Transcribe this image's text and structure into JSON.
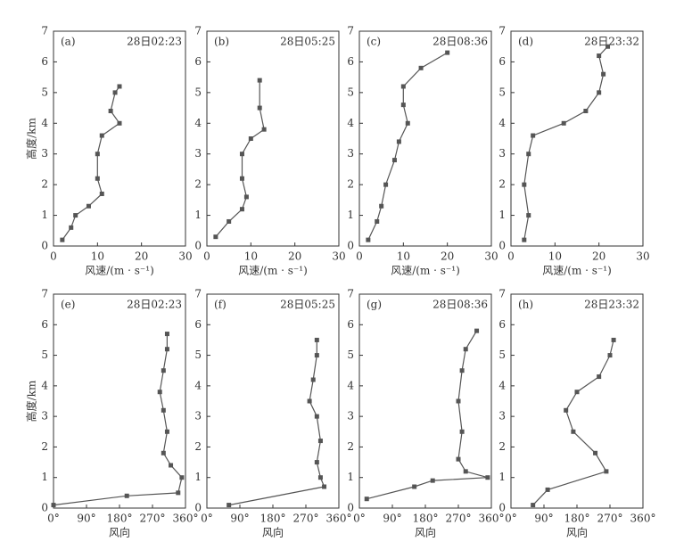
{
  "chart_data": [
    {
      "type": "line",
      "panel": "(a)",
      "time": "28日02:23",
      "xlabel": "风速/(m · s⁻¹)",
      "ylabel": "高度/km",
      "xlim": [
        0,
        30
      ],
      "ylim": [
        0,
        7
      ],
      "xticks": [
        0,
        10,
        20,
        30
      ],
      "yticks": [
        0,
        1,
        2,
        3,
        4,
        5,
        6,
        7
      ],
      "color": "#555555",
      "x": [
        2,
        4,
        5,
        8,
        11,
        10,
        10,
        11,
        15,
        13,
        14,
        15
      ],
      "values": [
        0.2,
        0.6,
        1.0,
        1.3,
        1.7,
        2.2,
        3.0,
        3.6,
        4.0,
        4.4,
        5.0,
        5.2
      ]
    },
    {
      "type": "line",
      "panel": "(b)",
      "time": "28日05:25",
      "xlabel": "风速/(m · s⁻¹)",
      "xlim": [
        0,
        30
      ],
      "ylim": [
        0,
        7
      ],
      "xticks": [
        0,
        10,
        20,
        30
      ],
      "yticks": [
        0,
        1,
        2,
        3,
        4,
        5,
        6,
        7
      ],
      "color": "#555555",
      "x": [
        2,
        5,
        8,
        9,
        8,
        8,
        10,
        13,
        12,
        12
      ],
      "values": [
        0.3,
        0.8,
        1.2,
        1.6,
        2.2,
        3.0,
        3.5,
        3.8,
        4.5,
        5.4
      ]
    },
    {
      "type": "line",
      "panel": "(c)",
      "time": "28日08:36",
      "xlabel": "风速/(m · s⁻¹)",
      "xlim": [
        0,
        30
      ],
      "ylim": [
        0,
        7
      ],
      "xticks": [
        0,
        10,
        20,
        30
      ],
      "yticks": [
        0,
        1,
        2,
        3,
        4,
        5,
        6,
        7
      ],
      "color": "#555555",
      "x": [
        2,
        4,
        5,
        6,
        8,
        9,
        11,
        10,
        10,
        14,
        20
      ],
      "values": [
        0.2,
        0.8,
        1.3,
        2.0,
        2.8,
        3.4,
        4.0,
        4.6,
        5.2,
        5.8,
        6.3
      ]
    },
    {
      "type": "line",
      "panel": "(d)",
      "time": "28日23:32",
      "xlabel": "风速/(m · s⁻¹)",
      "xlim": [
        0,
        30
      ],
      "ylim": [
        0,
        7
      ],
      "xticks": [
        0,
        10,
        20,
        30
      ],
      "yticks": [
        0,
        1,
        2,
        3,
        4,
        5,
        6,
        7
      ],
      "color": "#555555",
      "x": [
        3,
        4,
        3,
        4,
        5,
        12,
        17,
        20,
        21,
        20,
        22
      ],
      "values": [
        0.2,
        1.0,
        2.0,
        3.0,
        3.6,
        4.0,
        4.4,
        5.0,
        5.6,
        6.2,
        6.5
      ]
    },
    {
      "type": "line",
      "panel": "(e)",
      "time": "28日02:23",
      "xlabel": "风向",
      "ylabel": "高度/km",
      "xlim": [
        0,
        360
      ],
      "ylim": [
        0,
        7
      ],
      "xticks": [
        {
          "value": 0,
          "label": "0°"
        },
        {
          "value": 90,
          "label": "90°"
        },
        {
          "value": 180,
          "label": "180°"
        },
        {
          "value": 270,
          "label": "270°"
        },
        {
          "value": 360,
          "label": "360°"
        }
      ],
      "yticks": [
        0,
        1,
        2,
        3,
        4,
        5,
        6,
        7
      ],
      "color": "#555555",
      "x": [
        0,
        200,
        340,
        350,
        320,
        300,
        310,
        300,
        290,
        300,
        310,
        310
      ],
      "values": [
        0.1,
        0.4,
        0.5,
        1.0,
        1.4,
        1.8,
        2.5,
        3.2,
        3.8,
        4.5,
        5.2,
        5.7
      ]
    },
    {
      "type": "line",
      "panel": "(f)",
      "time": "28日05:25",
      "xlabel": "风向",
      "xlim": [
        0,
        360
      ],
      "ylim": [
        0,
        7
      ],
      "xticks": [
        {
          "value": 0,
          "label": "0°"
        },
        {
          "value": 90,
          "label": "90°"
        },
        {
          "value": 180,
          "label": "180°"
        },
        {
          "value": 270,
          "label": "270°"
        },
        {
          "value": 360,
          "label": "360°"
        }
      ],
      "yticks": [
        0,
        1,
        2,
        3,
        4,
        5,
        6,
        7
      ],
      "color": "#555555",
      "x": [
        60,
        320,
        310,
        300,
        310,
        300,
        280,
        290,
        300,
        300
      ],
      "values": [
        0.1,
        0.7,
        1.0,
        1.5,
        2.2,
        3.0,
        3.5,
        4.2,
        5.0,
        5.5
      ]
    },
    {
      "type": "line",
      "panel": "(g)",
      "time": "28日08:36",
      "xlabel": "风向",
      "xlim": [
        0,
        360
      ],
      "ylim": [
        0,
        7
      ],
      "xticks": [
        {
          "value": 0,
          "label": "0°"
        },
        {
          "value": 90,
          "label": "90°"
        },
        {
          "value": 180,
          "label": "180°"
        },
        {
          "value": 270,
          "label": "270°"
        },
        {
          "value": 360,
          "label": "360°"
        }
      ],
      "yticks": [
        0,
        1,
        2,
        3,
        4,
        5,
        6,
        7
      ],
      "color": "#555555",
      "x": [
        20,
        150,
        200,
        350,
        290,
        270,
        280,
        270,
        280,
        290,
        320
      ],
      "values": [
        0.3,
        0.7,
        0.9,
        1.0,
        1.2,
        1.6,
        2.5,
        3.5,
        4.5,
        5.2,
        5.8
      ]
    },
    {
      "type": "line",
      "panel": "(h)",
      "time": "28日23:32",
      "xlabel": "风向",
      "xlim": [
        0,
        360
      ],
      "ylim": [
        0,
        7
      ],
      "xticks": [
        {
          "value": 0,
          "label": "0°"
        },
        {
          "value": 90,
          "label": "90°"
        },
        {
          "value": 180,
          "label": "180°"
        },
        {
          "value": 270,
          "label": "270°"
        },
        {
          "value": 360,
          "label": "360°"
        }
      ],
      "yticks": [
        0,
        1,
        2,
        3,
        4,
        5,
        6,
        7
      ],
      "color": "#555555",
      "x": [
        60,
        100,
        260,
        230,
        170,
        150,
        180,
        240,
        270,
        280
      ],
      "values": [
        0.1,
        0.6,
        1.2,
        1.8,
        2.5,
        3.2,
        3.8,
        4.3,
        5.0,
        5.5
      ]
    }
  ]
}
